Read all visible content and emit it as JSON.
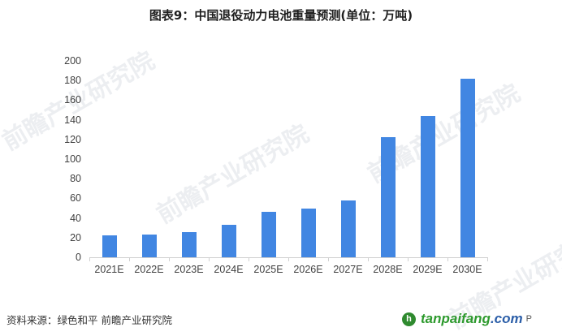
{
  "title": "图表9：中国退役动力电池重量预测(单位：万吨)",
  "source": "资料来源：绿色和平 前瞻产业研究院",
  "watermark": "前瞻产业研究院",
  "logo": {
    "prefix": "tanpaifang",
    "suffix": ".com",
    "tail": "P"
  },
  "colors": {
    "bar": "#4186e2",
    "axis": "#d0d0d0",
    "text": "#404040"
  },
  "chart_data": {
    "type": "bar",
    "title": "图表9：中国退役动力电池重量预测(单位：万吨)",
    "xlabel": "",
    "ylabel": "万吨",
    "categories": [
      "2021E",
      "2022E",
      "2023E",
      "2024E",
      "2025E",
      "2026E",
      "2027E",
      "2028E",
      "2029E",
      "2030E"
    ],
    "values": [
      22,
      23,
      26,
      33,
      46,
      50,
      58,
      122,
      144,
      182
    ],
    "ylim": [
      0,
      200
    ],
    "yticks": [
      0,
      20,
      40,
      60,
      80,
      100,
      120,
      140,
      160,
      180,
      200
    ],
    "grid": false,
    "legend": null
  }
}
